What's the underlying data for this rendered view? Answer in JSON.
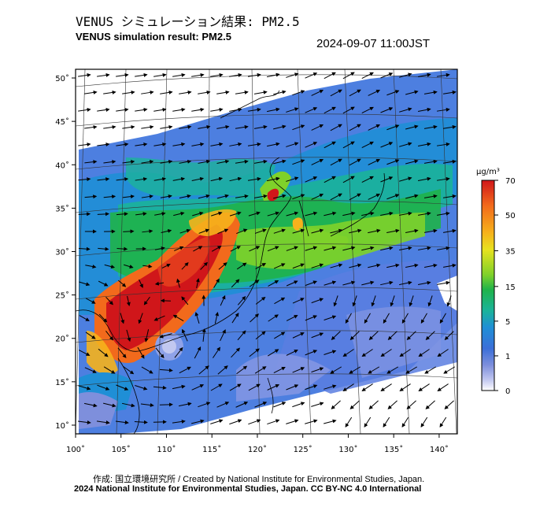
{
  "header": {
    "title_jp": "VENUS シミュレーション結果: PM2.5",
    "title_en": "VENUS simulation result: PM2.5",
    "timestamp": "2024-09-07 11:00JST"
  },
  "map": {
    "region": "East Asia",
    "lon_range": [
      100,
      142
    ],
    "lat_range": [
      9,
      51
    ],
    "x_ticks": [
      "100˚",
      "105˚",
      "110˚",
      "115˚",
      "120˚",
      "125˚",
      "130˚",
      "135˚",
      "140˚"
    ],
    "y_ticks": [
      "50˚",
      "45˚",
      "40˚",
      "35˚",
      "30˚",
      "25˚",
      "20˚",
      "15˚",
      "10˚"
    ],
    "x_tick_values": [
      100,
      105,
      110,
      115,
      120,
      125,
      130,
      135,
      140
    ],
    "y_tick_values": [
      50,
      45,
      40,
      35,
      30,
      25,
      20,
      15,
      10
    ],
    "features": [
      "PM2.5 concentration field",
      "wind vector arrows",
      "typhoon circulation near 111E 21N",
      "coastlines"
    ]
  },
  "colorbar": {
    "unit": "μg/m³",
    "ticks": [
      "70",
      "50",
      "35",
      "15",
      "5",
      "1",
      "0"
    ],
    "tick_values": [
      70,
      50,
      35,
      15,
      5,
      1,
      0
    ],
    "colors": [
      "#d0161a",
      "#f26a1c",
      "#f6b21c",
      "#e7e21f",
      "#7fd12a",
      "#1fb34a",
      "#1bb39a",
      "#1f8fd6",
      "#3b6fd8",
      "#7e8fdc",
      "#c2c8f0",
      "#ffffff"
    ]
  },
  "footer": {
    "credit_jp": "作成: 国立環境研究所 / Created by National Institute for Environmental Studies, Japan.",
    "credit_en": "2024 National Institute for Environmental Studies, Japan. CC BY-NC 4.0 International"
  }
}
